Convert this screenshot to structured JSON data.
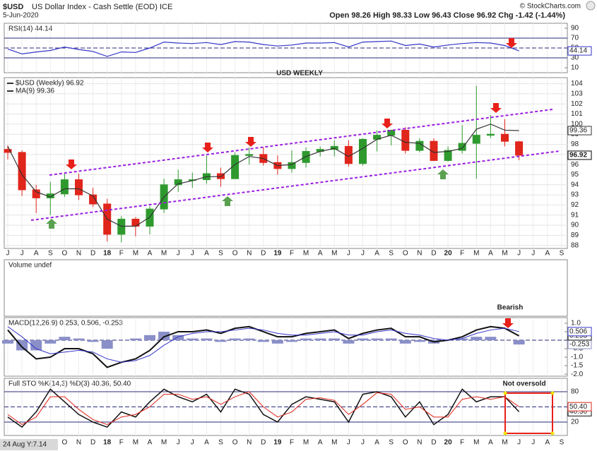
{
  "header": {
    "symbol": "$USD",
    "name": "US Dollar Index - Cash Settle (EOD) ICE",
    "date": "5-Jun-2020",
    "quote": "Open 98.26 High 98.33 Low 96.43 Close 96.92 Chg -1.42 (-1.44%)",
    "watermark": "© StockCharts.com",
    "footer": "24 Aug Y:7.14"
  },
  "chart_data": [
    {
      "type": "line",
      "title": "RSI(14) 44.14",
      "ylim": [
        0,
        100
      ],
      "yticks": [
        10,
        30,
        50,
        70,
        90
      ],
      "reference_lines": [
        30,
        50,
        70
      ],
      "series": [
        {
          "style": "line",
          "color": "#3535c8",
          "last_value_tag": true,
          "values": [
            48,
            38,
            42,
            45,
            52,
            47,
            43,
            33,
            42,
            41,
            50,
            62,
            60,
            59,
            61,
            57,
            63,
            62,
            57,
            54,
            56,
            60,
            60,
            61,
            52,
            62,
            63,
            64,
            55,
            58,
            52,
            56,
            59,
            61,
            60,
            55,
            44.14,
            null,
            null,
            null
          ]
        }
      ]
    },
    {
      "type": "candlestick",
      "annotation": "USD WEEKLY",
      "ylim": [
        87.7,
        104.6
      ],
      "yticks": [
        88,
        89,
        90,
        91,
        92,
        93,
        94,
        95,
        96,
        97,
        98,
        99,
        100,
        101,
        102,
        103,
        104
      ],
      "grid": true,
      "categories": [
        "J",
        "J",
        "A",
        "S",
        "O",
        "N",
        "D",
        "18",
        "F",
        "M",
        "A",
        "M",
        "J",
        "J",
        "A",
        "S",
        "O",
        "N",
        "D",
        "19",
        "F",
        "M",
        "A",
        "M",
        "J",
        "J",
        "A",
        "S",
        "O",
        "N",
        "D",
        "20",
        "F",
        "M",
        "A",
        "M",
        "J",
        "J",
        "A",
        "S"
      ],
      "series": [
        {
          "style": "candlestick",
          "name": "$USD (Weekly) 96.92",
          "up_color": "#2e9a2e",
          "down_color": "#e0251b",
          "last_value_tag": true,
          "open": [
            97.5,
            97.2,
            93.5,
            92.7,
            93.1,
            94.5,
            93.0,
            92.1,
            89.1,
            90.6,
            89.9,
            91.6,
            94.0,
            94.5,
            94.5,
            95.1,
            94.6,
            96.9,
            97.0,
            96.2,
            95.6,
            96.2,
            97.3,
            97.5,
            97.8,
            96.1,
            98.5,
            98.9,
            99.4,
            97.4,
            98.3,
            96.4,
            97.4,
            98.1,
            98.9,
            99.0,
            98.26,
            null,
            null,
            null
          ],
          "high": [
            97.9,
            97.4,
            94.0,
            94.3,
            95.2,
            95.1,
            93.7,
            92.6,
            90.9,
            90.8,
            91.9,
            94.6,
            95.5,
            95.2,
            96.9,
            95.7,
            97.2,
            97.7,
            97.7,
            96.9,
            97.4,
            97.7,
            97.8,
            98.4,
            98.4,
            98.6,
            99.4,
            99.4,
            99.7,
            98.6,
            98.6,
            97.8,
            99.9,
            103.8,
            100.9,
            100.5,
            98.33,
            null,
            null,
            null
          ],
          "low": [
            96.5,
            92.9,
            91.2,
            91.0,
            92.8,
            92.5,
            91.8,
            88.4,
            88.3,
            88.9,
            89.1,
            91.2,
            93.3,
            93.7,
            94.1,
            93.8,
            94.6,
            96.0,
            95.9,
            95.0,
            95.2,
            95.7,
            96.8,
            96.8,
            95.8,
            95.9,
            97.3,
            97.9,
            97.1,
            97.2,
            96.4,
            96.3,
            97.1,
            94.6,
            98.6,
            97.8,
            96.43,
            null,
            null,
            null
          ],
          "close": [
            97.2,
            93.5,
            92.7,
            93.1,
            94.5,
            93.0,
            92.1,
            89.1,
            90.6,
            89.9,
            91.6,
            94.0,
            94.5,
            94.5,
            95.1,
            94.6,
            96.9,
            97.0,
            96.2,
            95.6,
            96.2,
            97.3,
            97.5,
            97.8,
            96.1,
            98.5,
            98.9,
            99.4,
            97.4,
            98.3,
            96.4,
            97.4,
            98.1,
            98.9,
            99.0,
            98.3,
            96.92,
            null,
            null,
            null
          ]
        },
        {
          "style": "line",
          "name": "MA(9) 99.36",
          "color": "#333333",
          "last_value_tag": true,
          "values": [
            97.8,
            95.0,
            93.3,
            92.8,
            93.6,
            93.6,
            92.9,
            90.6,
            89.9,
            89.9,
            90.8,
            92.8,
            94.1,
            94.4,
            94.8,
            94.8,
            96.0,
            96.8,
            96.6,
            95.9,
            96.0,
            96.8,
            97.3,
            97.6,
            96.8,
            97.6,
            98.5,
            98.9,
            98.2,
            98.1,
            97.2,
            97.3,
            97.6,
            99.5,
            100.0,
            99.4,
            99.36,
            null,
            null,
            null
          ]
        }
      ]
    },
    {
      "type": "volume",
      "title": "Volume undef"
    },
    {
      "type": "macd",
      "title": "MACD(12,26,9) 0.253, 0.506, -0.253",
      "annotation": "Bearish",
      "ylim": [
        -2.12,
        1.33
      ],
      "yticks": [
        {
          "value": 1,
          "label": "1.0"
        },
        {
          "value": 0.5,
          "label": "0.5"
        },
        {
          "value": 0,
          "label": "0.0"
        },
        {
          "value": -0.5,
          "label": "-0.5"
        },
        {
          "value": -1,
          "label": "-1.0"
        },
        {
          "value": -1.5,
          "label": "-1.5"
        },
        {
          "value": -2,
          "label": "-2.0"
        }
      ],
      "reference_lines": [
        0
      ],
      "series": [
        {
          "style": "histogram",
          "color": "#8a8fc8",
          "last_value_tag": true,
          "values": [
            -0.2,
            -0.6,
            -0.6,
            -0.2,
            0.2,
            0.1,
            -0.1,
            -0.5,
            0.0,
            0.1,
            0.3,
            0.5,
            0.3,
            0.1,
            0.1,
            -0.1,
            0.1,
            0.1,
            -0.1,
            -0.2,
            -0.1,
            0.1,
            0.1,
            0.1,
            -0.2,
            0.1,
            0.1,
            0.1,
            -0.2,
            -0.1,
            -0.2,
            0.0,
            0.1,
            0.2,
            0.2,
            0.0,
            -0.253,
            null,
            null,
            null
          ]
        },
        {
          "style": "line",
          "color": "#111111",
          "width": 2,
          "last_value_tag": true,
          "values": [
            0.6,
            -0.4,
            -1.1,
            -1.0,
            -0.5,
            -0.5,
            -0.8,
            -1.6,
            -1.3,
            -1.1,
            -0.6,
            0.2,
            0.5,
            0.5,
            0.6,
            0.4,
            0.7,
            0.8,
            0.5,
            0.2,
            0.2,
            0.4,
            0.5,
            0.6,
            0.1,
            0.4,
            0.6,
            0.7,
            0.2,
            0.2,
            -0.1,
            0.0,
            0.2,
            0.6,
            0.8,
            0.7,
            0.253,
            null,
            null,
            null
          ]
        },
        {
          "style": "line",
          "color": "#3535c8",
          "width": 1,
          "last_value_tag": true,
          "values": [
            0.8,
            0.2,
            -0.5,
            -0.8,
            -0.7,
            -0.6,
            -0.7,
            -1.1,
            -1.3,
            -1.2,
            -0.9,
            -0.3,
            0.2,
            0.4,
            0.5,
            0.5,
            0.6,
            0.7,
            0.6,
            0.4,
            0.3,
            0.3,
            0.4,
            0.5,
            0.3,
            0.3,
            0.5,
            0.6,
            0.4,
            0.3,
            0.1,
            0.0,
            0.1,
            0.4,
            0.6,
            0.7,
            0.506,
            null,
            null,
            null
          ]
        }
      ]
    },
    {
      "type": "stochastic",
      "title": "Full STO %K(14,3) %D(3) 40.36, 50.40",
      "annotation": "Not oversold",
      "ylim": [
        -6.5,
        106.5
      ],
      "yticks": [
        20,
        80
      ],
      "reference_lines": [
        20,
        50,
        80
      ],
      "categories": [
        "J",
        "J",
        "A",
        "S",
        "O",
        "N",
        "D",
        "18",
        "F",
        "M",
        "A",
        "M",
        "J",
        "J",
        "A",
        "S",
        "O",
        "N",
        "D",
        "19",
        "F",
        "M",
        "A",
        "M",
        "J",
        "J",
        "A",
        "S",
        "O",
        "N",
        "D",
        "20",
        "F",
        "M",
        "A",
        "M",
        "J",
        "J",
        "A",
        "S"
      ],
      "series": [
        {
          "style": "line",
          "color": "#111111",
          "width": 1.5,
          "last_value_tag": true,
          "values": [
            30,
            10,
            40,
            85,
            60,
            35,
            20,
            10,
            40,
            30,
            60,
            85,
            70,
            60,
            75,
            40,
            85,
            75,
            35,
            20,
            55,
            70,
            65,
            60,
            20,
            75,
            80,
            70,
            30,
            60,
            15,
            35,
            85,
            60,
            70,
            70,
            40.36,
            null,
            null,
            null
          ]
        },
        {
          "style": "line",
          "color": "#e0251b",
          "width": 1,
          "last_value_tag": true,
          "values": [
            35,
            15,
            30,
            70,
            70,
            45,
            25,
            15,
            30,
            35,
            50,
            75,
            75,
            65,
            70,
            55,
            70,
            80,
            50,
            30,
            40,
            65,
            68,
            63,
            35,
            55,
            78,
            75,
            45,
            50,
            30,
            30,
            65,
            70,
            65,
            70,
            50.4,
            null,
            null,
            null
          ],
          "value_labels": [
            null,
            null,
            null,
            null,
            null,
            null,
            null,
            null,
            null,
            null,
            null,
            null,
            null,
            null,
            null,
            null,
            null,
            null,
            null,
            null,
            null,
            null,
            null,
            null,
            null,
            null,
            null,
            null,
            null,
            null,
            null,
            null,
            null,
            null,
            null,
            null,
            "50.40",
            null,
            null,
            null
          ]
        }
      ]
    }
  ]
}
